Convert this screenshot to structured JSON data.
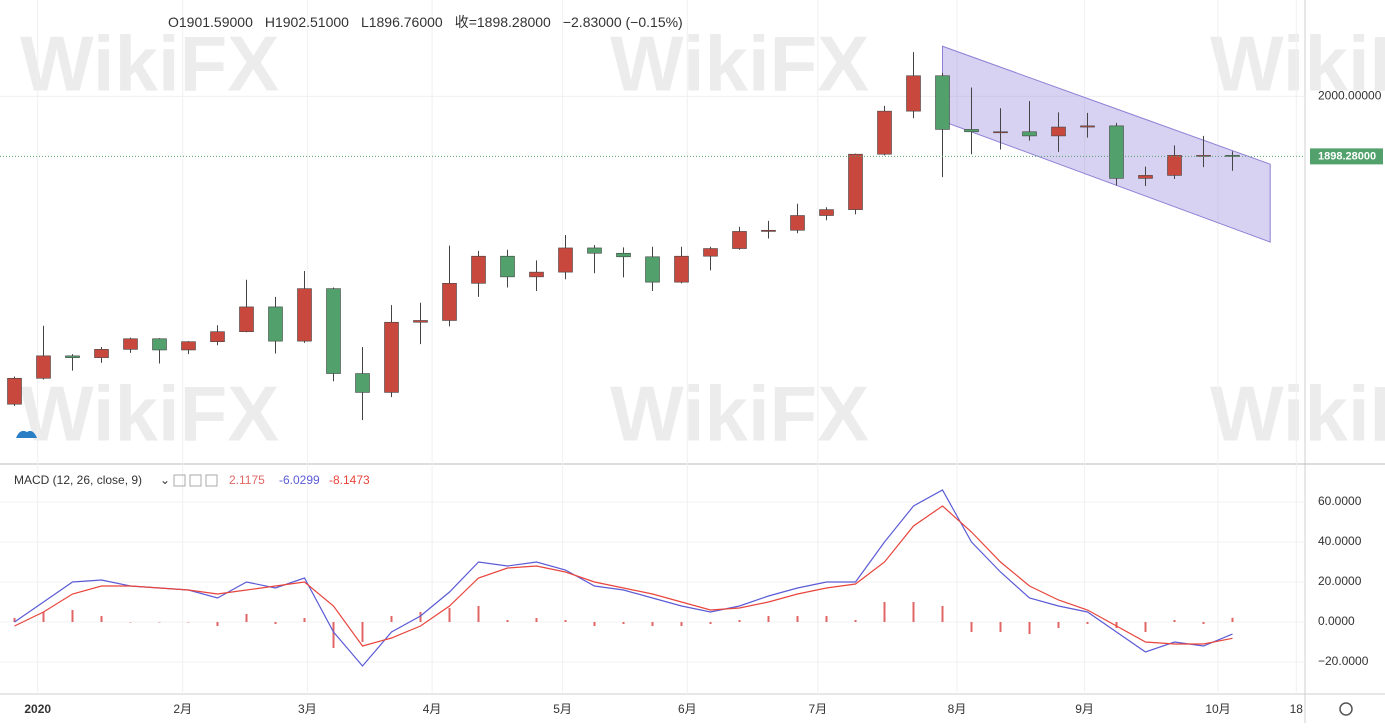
{
  "chart_data": [
    {
      "type": "candlestick",
      "header": [
        "O1901.59000",
        "H1902.51000",
        "L1896.76000",
        "收=1898.28000",
        "−2.83000 (−0.15%)"
      ],
      "watermark": "WikiFX",
      "open": [
        1478,
        1522,
        1560,
        1557,
        1571,
        1589,
        1570,
        1584,
        1601,
        1643,
        1585,
        1674,
        1530,
        1498,
        1617,
        1620,
        1683,
        1729,
        1694,
        1702,
        1743,
        1734,
        1728,
        1685,
        1729,
        1742,
        1771,
        1773,
        1798,
        1808,
        1902,
        1975,
        2035,
        1944,
        1940,
        1940,
        1933,
        1948,
        1950,
        1861,
        1866,
        1900,
        1900
      ],
      "high": [
        1525,
        1611,
        1563,
        1575,
        1591,
        1590,
        1585,
        1612,
        1689,
        1660,
        1704,
        1676,
        1575,
        1646,
        1650,
        1747,
        1738,
        1740,
        1722,
        1765,
        1748,
        1744,
        1745,
        1745,
        1745,
        1779,
        1789,
        1818,
        1812,
        1903,
        1984,
        2075,
        2040,
        2015,
        1980,
        1992,
        1973,
        1972,
        1955,
        1881,
        1917,
        1933,
        1907
      ],
      "low": [
        1475,
        1520,
        1535,
        1548,
        1565,
        1547,
        1563,
        1578,
        1600,
        1564,
        1582,
        1517,
        1451,
        1490,
        1580,
        1610,
        1660,
        1676,
        1670,
        1690,
        1700,
        1693,
        1670,
        1683,
        1705,
        1740,
        1759,
        1768,
        1790,
        1800,
        1900,
        1963,
        1863,
        1902,
        1910,
        1925,
        1906,
        1930,
        1849,
        1848,
        1860,
        1880,
        1874
      ],
      "close": [
        1522,
        1560,
        1557,
        1571,
        1589,
        1570,
        1584,
        1601,
        1643,
        1585,
        1674,
        1530,
        1498,
        1617,
        1620,
        1683,
        1729,
        1694,
        1702,
        1743,
        1734,
        1728,
        1685,
        1729,
        1742,
        1771,
        1773,
        1798,
        1808,
        1902,
        1975,
        2035,
        1944,
        1940,
        1940,
        1933,
        1948,
        1950,
        1861,
        1866,
        1900,
        1900,
        1898.28
      ],
      "up_color": "#c9483e",
      "down_color": "#52a06c",
      "ylim": [
        1380,
        2155
      ],
      "yticks": [
        {
          "value": 2000,
          "label": "2000.00000"
        }
      ],
      "last_price": {
        "value": 1898.28,
        "label": "1898.28000"
      },
      "channel": {
        "x": [
          32,
          43.3
        ],
        "upper": [
          2085,
          1885
        ],
        "lower": [
          1958,
          1753
        ],
        "color": "#8d7fd6"
      }
    },
    {
      "type": "macd",
      "title": "MACD (12, 26, close, 9)",
      "xlim": [
        -0.5,
        44.5
      ],
      "xticks": [
        {
          "value": 0.8,
          "label": "2020"
        },
        {
          "value": 5.8,
          "label": "2月"
        },
        {
          "value": 10.1,
          "label": "3月"
        },
        {
          "value": 14.4,
          "label": "4月"
        },
        {
          "value": 18.9,
          "label": "5月"
        },
        {
          "value": 23.2,
          "label": "6月"
        },
        {
          "value": 27.7,
          "label": "7月"
        },
        {
          "value": 32.5,
          "label": "8月"
        },
        {
          "value": 36.9,
          "label": "9月"
        },
        {
          "value": 41.5,
          "label": "10月"
        },
        {
          "value": 44.2,
          "label": "18"
        }
      ],
      "ylim": [
        -34,
        78
      ],
      "yticks": [
        {
          "value": 60,
          "label": "60.0000"
        },
        {
          "value": 40,
          "label": "40.0000"
        },
        {
          "value": 20,
          "label": "20.0000"
        },
        {
          "value": 0,
          "label": "0.0000"
        },
        {
          "value": -20,
          "label": "−20.0000"
        }
      ],
      "series": [
        {
          "kind": "histogram",
          "color": "#e06666",
          "values": [
            2,
            5,
            6,
            3,
            0,
            0,
            0,
            -2,
            4,
            -1,
            2,
            -13,
            -10,
            3,
            5,
            7,
            8,
            1,
            2,
            1,
            -2,
            -1,
            -2,
            -2,
            -1,
            1,
            3,
            3,
            3,
            1,
            10,
            10,
            8,
            -5,
            -5,
            -6,
            -3,
            -1,
            -3,
            -5,
            1,
            -1,
            2.1175
          ]
        },
        {
          "kind": "line",
          "color": "#5b5bd6",
          "values": [
            0,
            10,
            20,
            21,
            18,
            17,
            16,
            12,
            20,
            17,
            22,
            -5,
            -22,
            -5,
            3,
            15,
            30,
            28,
            30,
            26,
            18,
            16,
            12,
            8,
            5,
            8,
            13,
            17,
            20,
            20,
            40,
            58,
            66,
            40,
            25,
            12,
            8,
            5,
            -5,
            -15,
            -10,
            -12,
            -6.0299
          ]
        },
        {
          "kind": "line",
          "color": "#e8453c",
          "values": [
            -2,
            5,
            14,
            18,
            18,
            17,
            16,
            14,
            16,
            18,
            20,
            8,
            -12,
            -8,
            -2,
            8,
            22,
            27,
            28,
            25,
            20,
            17,
            14,
            10,
            6,
            7,
            10,
            14,
            17,
            19,
            30,
            48,
            58,
            45,
            30,
            18,
            11,
            6,
            -2,
            -10,
            -11,
            -11,
            -8.1473
          ]
        }
      ]
    }
  ]
}
